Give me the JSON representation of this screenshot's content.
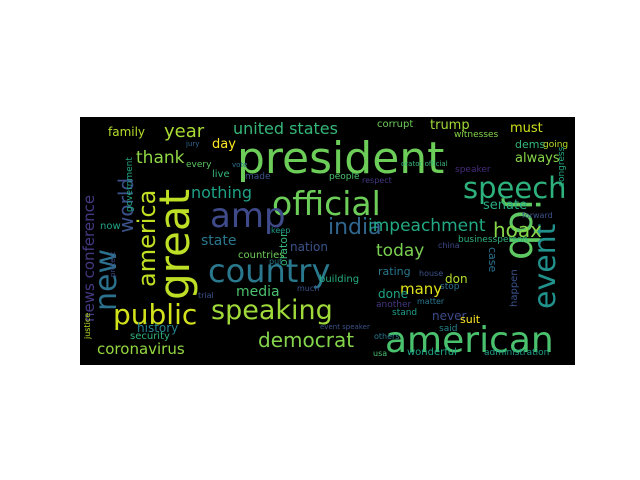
{
  "wordcloud": {
    "background": "#000000",
    "words": [
      {
        "text": "president",
        "color": "#6cce59"
      },
      {
        "text": "american",
        "color": "#4ac16d"
      },
      {
        "text": "country",
        "color": "#2a788e"
      },
      {
        "text": "official",
        "color": "#6cce59"
      },
      {
        "text": "great",
        "color": "#bddf26"
      },
      {
        "text": "amp",
        "color": "#3e4a89"
      },
      {
        "text": "public",
        "color": "#d2e21b"
      },
      {
        "text": "speaking",
        "color": "#9fda3a"
      },
      {
        "text": "speech",
        "color": "#2db27d"
      },
      {
        "text": "new",
        "color": "#2c728e"
      },
      {
        "text": "job",
        "color": "#5ec962"
      },
      {
        "text": "india",
        "color": "#31668e"
      },
      {
        "text": "event",
        "color": "#21918c"
      },
      {
        "text": "america",
        "color": "#c2df23"
      },
      {
        "text": "democrat",
        "color": "#84d44b"
      },
      {
        "text": "world",
        "color": "#3b528b"
      },
      {
        "text": "hoax",
        "color": "#86d549"
      },
      {
        "text": "year",
        "color": "#a8db34"
      },
      {
        "text": "united states",
        "color": "#35b779"
      },
      {
        "text": "impeachment",
        "color": "#22a884"
      },
      {
        "text": "thank",
        "color": "#8fd744"
      },
      {
        "text": "nothing",
        "color": "#1fa187"
      },
      {
        "text": "news conference",
        "color": "#443983"
      },
      {
        "text": "today",
        "color": "#7ad151"
      },
      {
        "text": "coronavirus",
        "color": "#95d840"
      },
      {
        "text": "media",
        "color": "#4ac16d"
      },
      {
        "text": "state",
        "color": "#2a788e"
      },
      {
        "text": "family",
        "color": "#b5de2b"
      },
      {
        "text": "day",
        "color": "#fde725"
      },
      {
        "text": "many",
        "color": "#dfe318"
      },
      {
        "text": "history",
        "color": "#26828e"
      },
      {
        "text": "must",
        "color": "#cde11d"
      },
      {
        "text": "always",
        "color": "#86d549"
      },
      {
        "text": "senate",
        "color": "#27ad81"
      },
      {
        "text": "dems",
        "color": "#35b779"
      },
      {
        "text": "going",
        "color": "#b8de29"
      },
      {
        "text": "trump",
        "color": "#a2da37"
      },
      {
        "text": "never",
        "color": "#3e4a89"
      },
      {
        "text": "done",
        "color": "#20a486"
      },
      {
        "text": "rating",
        "color": "#2a788e"
      },
      {
        "text": "nation",
        "color": "#3b528b"
      },
      {
        "text": "countries",
        "color": "#6ece58"
      },
      {
        "text": "building",
        "color": "#27ad81"
      },
      {
        "text": "orator",
        "color": "#35b779"
      },
      {
        "text": "don",
        "color": "#b5de2b"
      },
      {
        "text": "case",
        "color": "#2c728e"
      },
      {
        "text": "happen",
        "color": "#3b528b"
      },
      {
        "text": "wonderful",
        "color": "#20a486"
      },
      {
        "text": "administration",
        "color": "#1f9e89"
      },
      {
        "text": "suit",
        "color": "#fde725"
      },
      {
        "text": "congress",
        "color": "#22a884"
      },
      {
        "text": "businessperson",
        "color": "#2db27d"
      },
      {
        "text": "justice",
        "color": "#b8de29"
      },
      {
        "text": "security",
        "color": "#2db27d"
      },
      {
        "text": "now",
        "color": "#20a486"
      },
      {
        "text": "government",
        "color": "#22a884"
      },
      {
        "text": "people",
        "color": "#4ac16d"
      },
      {
        "text": "witnesses",
        "color": "#84d44b"
      },
      {
        "text": "corrupt",
        "color": "#6ece58"
      },
      {
        "text": "made",
        "color": "#3b528b"
      },
      {
        "text": "live",
        "color": "#35b779"
      },
      {
        "text": "every",
        "color": "#5ec962"
      },
      {
        "text": "said",
        "color": "#26828e"
      },
      {
        "text": "matter",
        "color": "#2a788e"
      },
      {
        "text": "stand",
        "color": "#1f9e89"
      },
      {
        "text": "stop",
        "color": "#2c728e"
      },
      {
        "text": "house",
        "color": "#3b528b"
      },
      {
        "text": "china",
        "color": "#3e4a89"
      },
      {
        "text": "usa",
        "color": "#4ac16d"
      },
      {
        "text": "trial",
        "color": "#3b528b"
      },
      {
        "text": "speaker",
        "color": "#472d7b"
      },
      {
        "text": "another",
        "color": "#443983"
      },
      {
        "text": "others",
        "color": "#2a788e"
      },
      {
        "text": "keep",
        "color": "#1f9e89"
      },
      {
        "text": "much",
        "color": "#3b528b"
      },
      {
        "text": "event speaker",
        "color": "#3b528b"
      },
      {
        "text": "orator official",
        "color": "#35b779"
      },
      {
        "text": "put",
        "color": "#2a788e"
      },
      {
        "text": "respect",
        "color": "#443983"
      },
      {
        "text": "jury",
        "color": "#31668e"
      },
      {
        "text": "protect",
        "color": "#3e4a89"
      },
      {
        "text": "forward",
        "color": "#3b528b"
      },
      {
        "text": "vote",
        "color": "#2c728e"
      }
    ]
  }
}
